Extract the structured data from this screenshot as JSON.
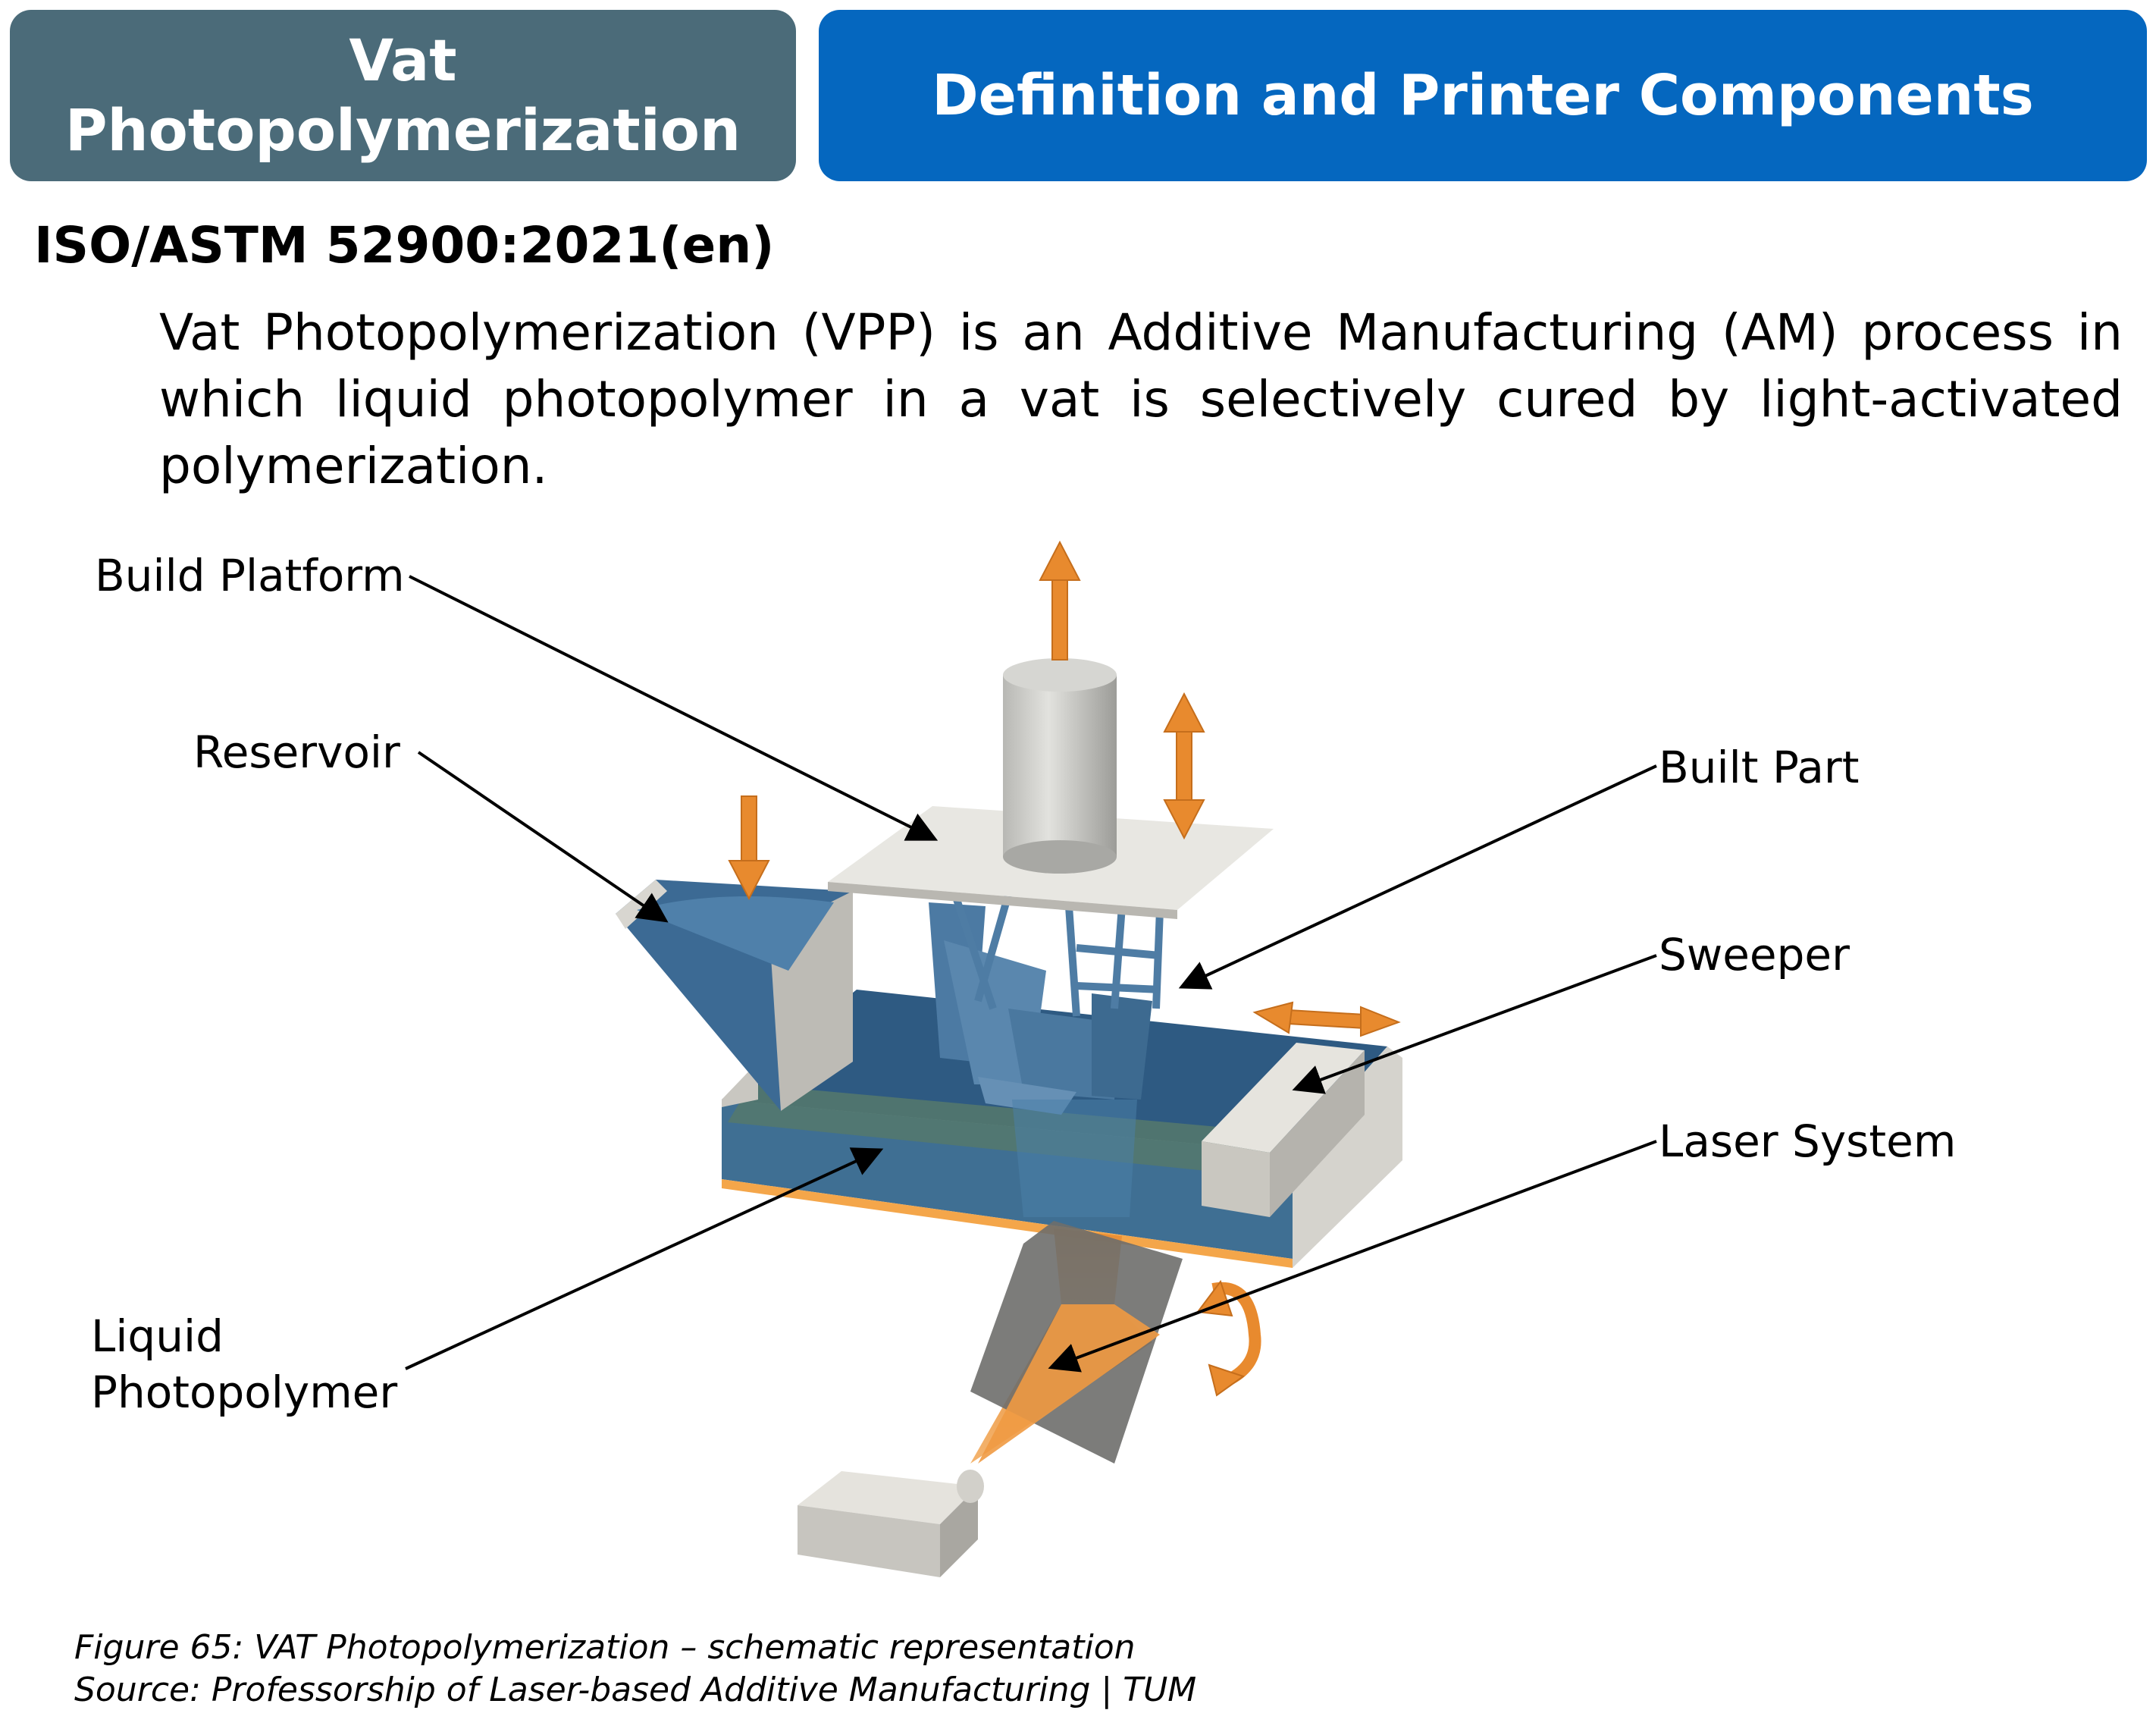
{
  "header": {
    "topic_line1": "Vat",
    "topic_line2": "Photopolymerization",
    "section_title": "Definition and Printer Components"
  },
  "standard": "ISO/ASTM 52900:2021(en)",
  "definition": "Vat Photopolymerization (VPP) is an Additive Manufacturing (AM) process in which liquid photopolymer in a vat is selectively cured by light-activated polymerization.",
  "labels": {
    "build_platform": "Build Platform",
    "reservoir": "Reservoir",
    "built_part": "Built Part",
    "sweeper": "Sweeper",
    "laser_system": "Laser System",
    "liquid_line1": "Liquid",
    "liquid_line2": "Photopolymer"
  },
  "caption": {
    "figure": "Figure 65: VAT Photopolymerization – schematic representation",
    "source": "Source: Professorship of Laser-based Additive Manufacturing | TUM"
  },
  "colors": {
    "topic_bg": "#4b6b79",
    "title_bg": "#0567bf",
    "motion_arrow": "#e88a2e",
    "resin": "#3f6f98",
    "part": "#4c7aa3"
  }
}
